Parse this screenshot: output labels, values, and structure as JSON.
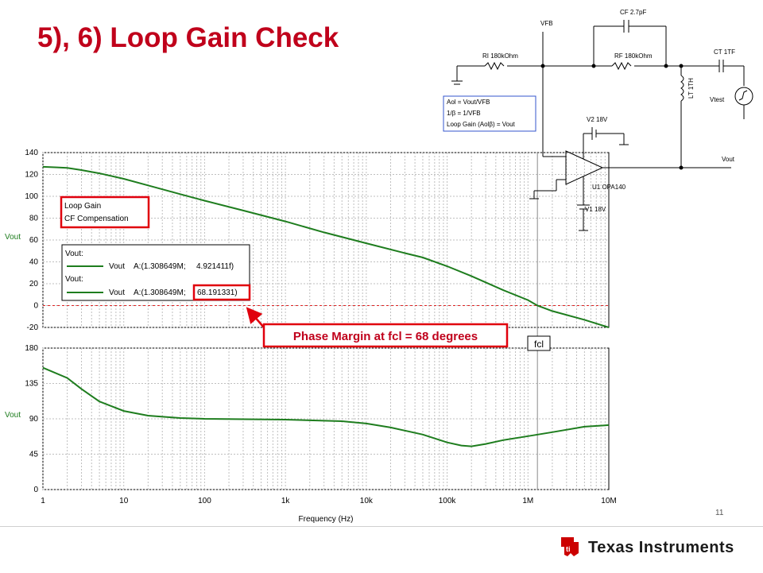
{
  "slide": {
    "title": "5), 6) Loop Gain Check",
    "page_number": "11",
    "company": "Texas Instruments"
  },
  "schematic": {
    "labels": {
      "vfb": "VFB",
      "cf": "CF 2.7pF",
      "ri": "RI 180kOhm",
      "rf": "RF 180kOhm",
      "ct": "CT 1TF",
      "lt": "LT 1TH",
      "vtest": "Vtest",
      "v2": "V2 18V",
      "v1": "V1 18V",
      "u1": "U1 OPA140",
      "vout": "Vout"
    },
    "equations": [
      "Aol = Vout/VFB",
      "1/β = 1/VFB",
      "Loop Gain (Aolβ) = Vout"
    ]
  },
  "legend_box": {
    "line1": "Loop Gain",
    "line2": "CF Compensation"
  },
  "cursor_box": {
    "row1_label": "Vout:",
    "row1_series": "Vout",
    "row1_prefix": "A:(1.308649M;",
    "row1_value": "4.921411f)",
    "row2_label": "Vout:",
    "row2_series": "Vout",
    "row2_prefix": "A:(1.308649M;",
    "row2_value": "68.191331)"
  },
  "callout": {
    "text": "Phase Margin at fcl = 68 degrees"
  },
  "fcl_label": "fcl",
  "colors": {
    "title": "#c0001b",
    "trace": "#1e7d1e",
    "highlight": "#e0000d",
    "ti_red": "#cc0000"
  },
  "chart_data": [
    {
      "type": "line",
      "name": "gain",
      "ylabel": "Vout",
      "ylim": [
        -20,
        140
      ],
      "yticks": [
        -20,
        0,
        20,
        40,
        60,
        80,
        100,
        120,
        140
      ],
      "xscale": "log",
      "xlim": [
        1,
        10000000
      ],
      "x": [
        1,
        1.5,
        2,
        3,
        5,
        10,
        20,
        50,
        100,
        300,
        1000,
        3000,
        10000,
        30000,
        50000,
        100000,
        200000,
        500000,
        1000000,
        1308649,
        2000000,
        5000000,
        10000000
      ],
      "y": [
        127,
        126.5,
        126,
        124,
        121,
        116,
        110,
        102,
        96,
        87,
        77,
        67,
        57,
        48,
        44,
        36,
        27,
        14,
        5,
        0,
        -5,
        -13,
        -20
      ],
      "annotations": [
        "Loop Gain",
        "CF Compensation"
      ],
      "reference_line": 0
    },
    {
      "type": "line",
      "name": "phase",
      "ylabel": "Vout",
      "ylim": [
        0,
        180
      ],
      "yticks": [
        0,
        45,
        90,
        135,
        180
      ],
      "xscale": "log",
      "xlim": [
        1,
        10000000
      ],
      "xlabel": "Frequency (Hz)",
      "xticklabels": [
        "1",
        "10",
        "100",
        "1k",
        "10k",
        "100k",
        "1M",
        "10M"
      ],
      "x": [
        1,
        2,
        3,
        5,
        10,
        20,
        50,
        100,
        1000,
        5000,
        10000,
        20000,
        50000,
        100000,
        150000,
        200000,
        300000,
        500000,
        1000000,
        2000000,
        5000000,
        10000000
      ],
      "y": [
        155,
        142,
        128,
        112,
        100,
        94,
        91,
        90,
        89,
        87,
        84,
        79,
        70,
        60,
        56,
        55,
        58,
        63,
        68,
        73,
        80,
        82
      ],
      "marker_x": 1308649
    }
  ]
}
